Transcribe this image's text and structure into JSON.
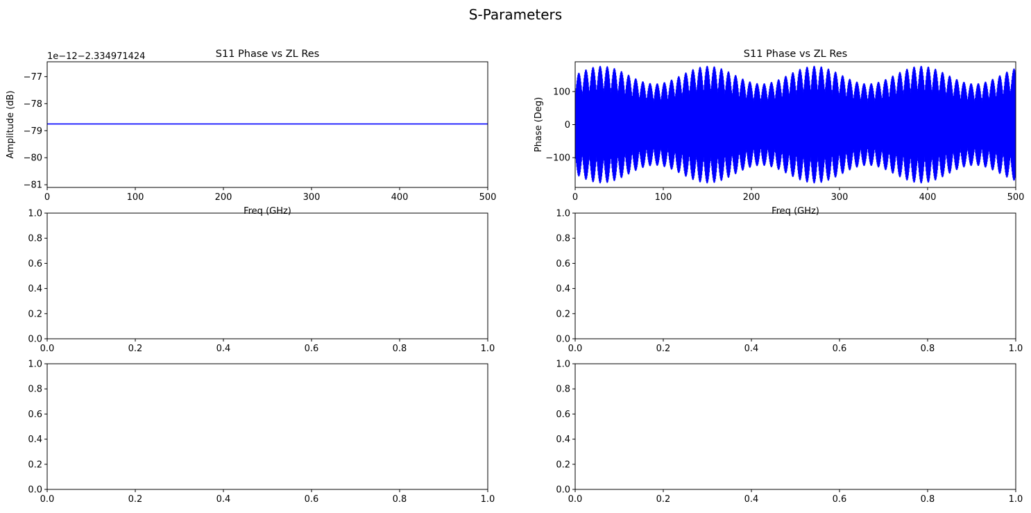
{
  "figure": {
    "title": "S-Parameters"
  },
  "chart_data": [
    {
      "type": "line",
      "title": "S11 Phase vs ZL Res",
      "xlabel": "Freq (GHz)",
      "ylabel": "Amplitude  (dB)",
      "offset_text": "1e−12−2.334971424",
      "xlim": [
        0,
        500
      ],
      "ylim": [
        -81.1,
        -76.45
      ],
      "xticks": [
        0,
        100,
        200,
        300,
        400,
        500
      ],
      "yticks": [
        -81,
        -80,
        -79,
        -78,
        -77
      ],
      "series": [
        {
          "color": "#0000ff",
          "x": [
            0,
            500
          ],
          "y": [
            -78.75,
            -78.75
          ]
        }
      ]
    },
    {
      "type": "line",
      "title": "S11 Phase vs ZL Res",
      "xlabel": "Freq (GHz)",
      "ylabel": "Phase (Deg)",
      "xlim": [
        0,
        500
      ],
      "ylim": [
        -190,
        190
      ],
      "xticks": [
        0,
        100,
        200,
        300,
        400,
        500
      ],
      "yticks": [
        -100,
        0,
        100
      ],
      "series": [
        {
          "color": "#0000ff",
          "description": "rapid oscillation between about -178 and 178 degrees",
          "x_range": [
            0,
            500
          ],
          "y_range": [
            -178,
            178
          ]
        }
      ]
    },
    {
      "type": "line",
      "title": "",
      "xlabel": "",
      "ylabel": "",
      "xlim": [
        0,
        1
      ],
      "ylim": [
        0,
        1
      ],
      "xticks": [
        "0.0",
        "0.2",
        "0.4",
        "0.6",
        "0.8",
        "1.0"
      ],
      "yticks": [
        "0.0",
        "0.2",
        "0.4",
        "0.6",
        "0.8",
        "1.0"
      ],
      "series": []
    },
    {
      "type": "line",
      "title": "",
      "xlabel": "",
      "ylabel": "",
      "xlim": [
        0,
        1
      ],
      "ylim": [
        0,
        1
      ],
      "xticks": [
        "0.0",
        "0.2",
        "0.4",
        "0.6",
        "0.8",
        "1.0"
      ],
      "yticks": [
        "0.0",
        "0.2",
        "0.4",
        "0.6",
        "0.8",
        "1.0"
      ],
      "series": []
    },
    {
      "type": "line",
      "title": "",
      "xlabel": "",
      "ylabel": "",
      "xlim": [
        0,
        1
      ],
      "ylim": [
        0,
        1
      ],
      "xticks": [
        "0.0",
        "0.2",
        "0.4",
        "0.6",
        "0.8",
        "1.0"
      ],
      "yticks": [
        "0.0",
        "0.2",
        "0.4",
        "0.6",
        "0.8",
        "1.0"
      ],
      "series": []
    },
    {
      "type": "line",
      "title": "",
      "xlabel": "",
      "ylabel": "",
      "xlim": [
        0,
        1
      ],
      "ylim": [
        0,
        1
      ],
      "xticks": [
        "0.0",
        "0.2",
        "0.4",
        "0.6",
        "0.8",
        "1.0"
      ],
      "yticks": [
        "0.0",
        "0.2",
        "0.4",
        "0.6",
        "0.8",
        "1.0"
      ],
      "series": []
    }
  ]
}
